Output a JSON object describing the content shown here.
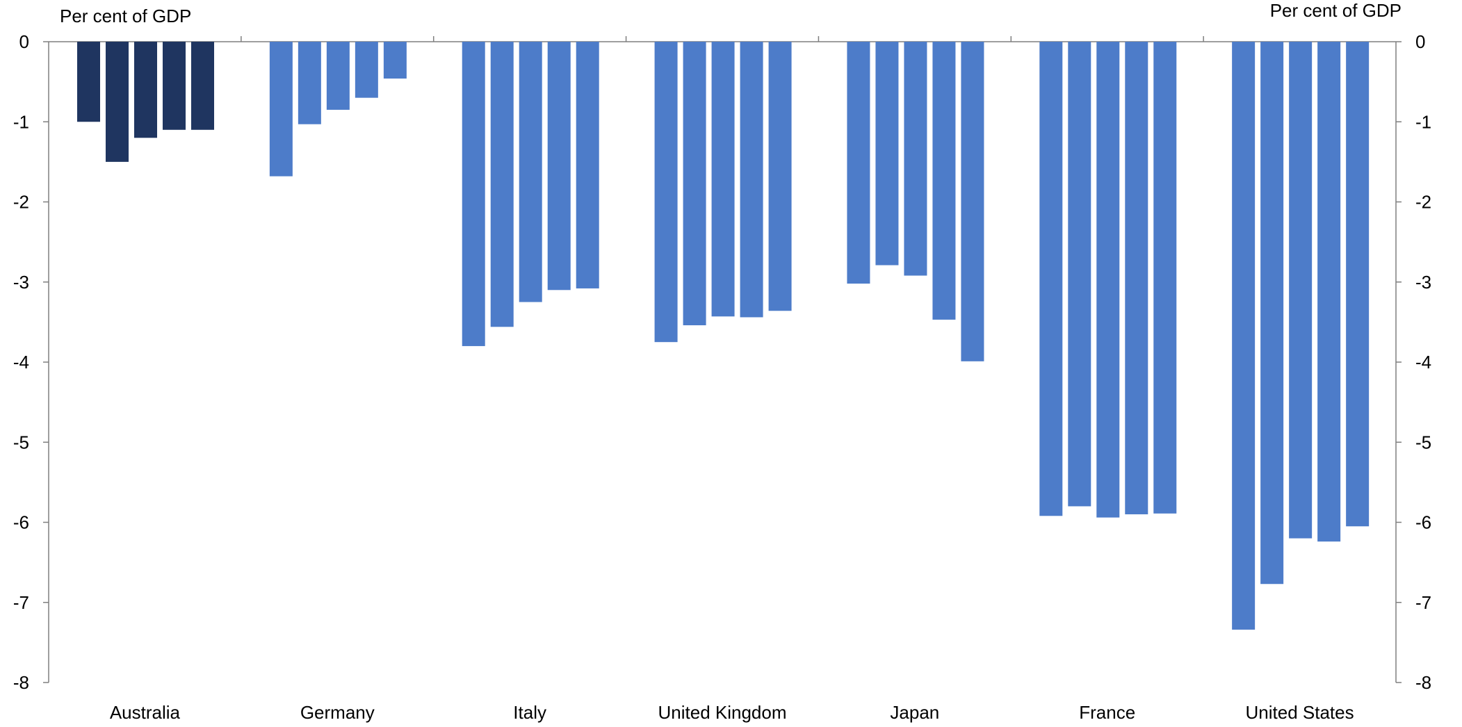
{
  "chart_data": {
    "type": "bar",
    "title": "",
    "ylabel_left": "Per cent of GDP",
    "ylabel_right": "Per cent of GDP",
    "ylim": [
      -8,
      0
    ],
    "yticks": [
      0,
      -1,
      -2,
      -3,
      -4,
      -5,
      -6,
      -7,
      -8
    ],
    "categories": [
      "Australia",
      "Germany",
      "Italy",
      "United Kingdom",
      "Japan",
      "France",
      "United States"
    ],
    "bars_per_category": 5,
    "colors": {
      "Australia": "#1f3560",
      "default": "#4d7cc9"
    },
    "values": {
      "Australia": [
        -1.0,
        -1.5,
        -1.2,
        -1.1,
        -1.1
      ],
      "Germany": [
        -1.68,
        -1.03,
        -0.85,
        -0.7,
        -0.46
      ],
      "Italy": [
        -3.8,
        -3.56,
        -3.25,
        -3.1,
        -3.08
      ],
      "United Kingdom": [
        -3.75,
        -3.54,
        -3.43,
        -3.44,
        -3.36
      ],
      "Japan": [
        -3.02,
        -2.79,
        -2.92,
        -3.47,
        -3.99
      ],
      "France": [
        -5.92,
        -5.8,
        -5.94,
        -5.9,
        -5.89
      ],
      "United States": [
        -7.34,
        -6.77,
        -6.2,
        -6.24,
        -6.05
      ]
    },
    "grid": false,
    "legend": "none"
  }
}
